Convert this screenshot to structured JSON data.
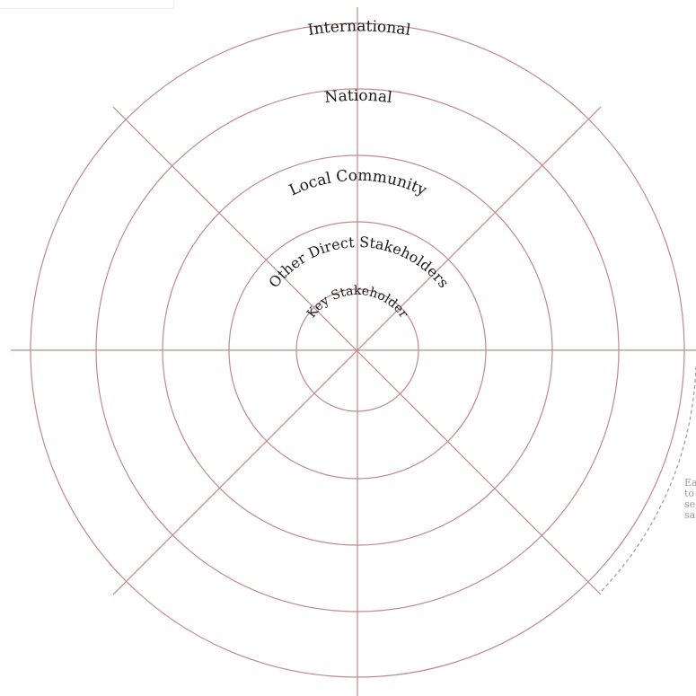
{
  "diagram": {
    "rings": [
      {
        "label": "Key Stakeholder"
      },
      {
        "label": "Other Direct Stakeholders"
      },
      {
        "label": "Local Community"
      },
      {
        "label": "National"
      },
      {
        "label": "International"
      }
    ],
    "side_note_lines": [
      "Ea",
      "to",
      "se",
      "sa"
    ],
    "colors": {
      "line": "#c08a8a",
      "text": "#1a1a1a",
      "note": "#9a9a9a",
      "dashed_arc": "#9a9a9a"
    }
  }
}
